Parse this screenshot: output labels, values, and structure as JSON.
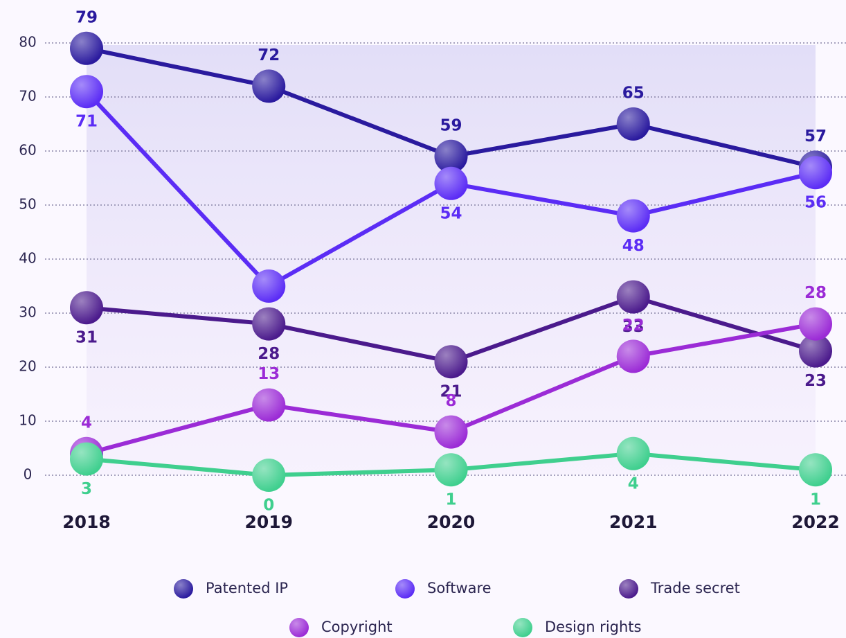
{
  "chart_data": {
    "type": "line",
    "categories": [
      "2018",
      "2019",
      "2020",
      "2021",
      "2022"
    ],
    "series": [
      {
        "name": "Patented IP",
        "color": "#2a1a9e",
        "values": [
          79,
          72,
          59,
          65,
          57
        ]
      },
      {
        "name": "Software",
        "color": "#5b2cf5",
        "values": [
          71,
          35,
          54,
          48,
          56
        ]
      },
      {
        "name": "Trade secret",
        "color": "#4b1a8c",
        "values": [
          31,
          28,
          21,
          33,
          23
        ]
      },
      {
        "name": "Copyright",
        "color": "#9b2bd6",
        "values": [
          4,
          13,
          8,
          22,
          28
        ]
      },
      {
        "name": "Design rights",
        "color": "#3fcf8e",
        "values": [
          3,
          0,
          1,
          4,
          1
        ]
      }
    ],
    "ylim": [
      0,
      80
    ],
    "yticks": [
      0,
      10,
      20,
      30,
      40,
      50,
      60,
      70,
      80
    ],
    "grid": true
  }
}
